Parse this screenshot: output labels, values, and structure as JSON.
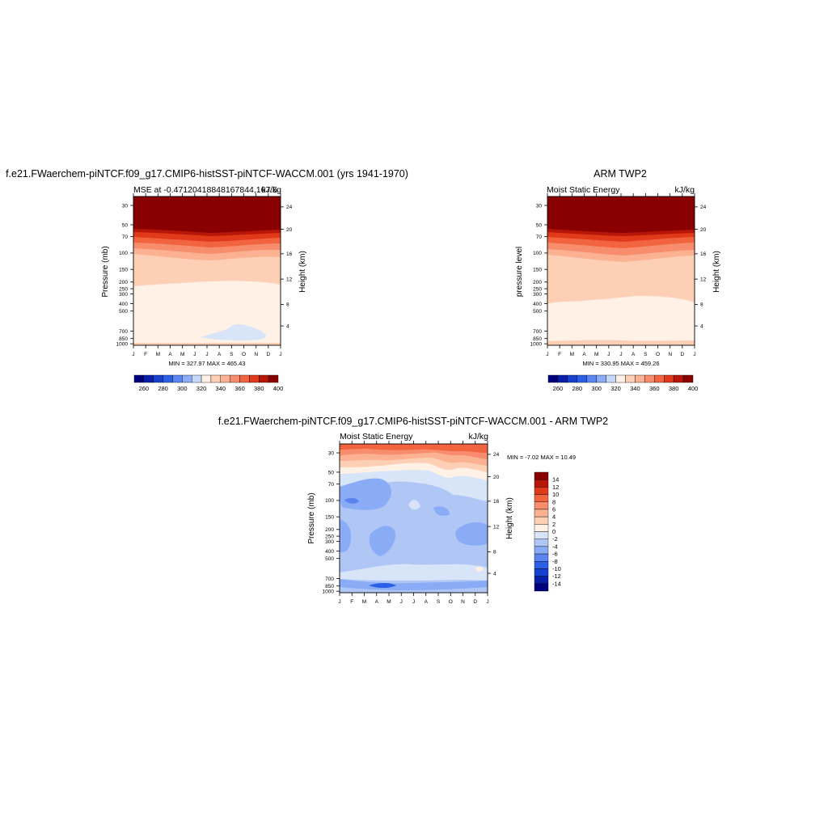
{
  "chart_data": [
    {
      "type": "contour",
      "title": "f.e21.FWaerchem-piNTCF.f09_g17.CMIP6-histSST-piNTCF-WACCM.001 (yrs 1941-1970)",
      "left_label": "MSE at -0.47120418848167844,167.5",
      "right_label": "kJ/kg",
      "ylabel": "Pressure (mb)",
      "ylabel_right": "Height (km)",
      "x_ticks": [
        "J",
        "F",
        "M",
        "A",
        "M",
        "J",
        "J",
        "A",
        "S",
        "O",
        "N",
        "D",
        "J"
      ],
      "y_ticks": [
        "30",
        "50",
        "70",
        "100",
        "150",
        "200",
        "250",
        "300",
        "400",
        "500",
        "700",
        "850",
        "1000"
      ],
      "height_ticks": [
        "24",
        "20",
        "16",
        "12",
        "8",
        "4"
      ],
      "min_max": "MIN = 327.97 MAX = 465.43",
      "colorbar_labels": [
        "260",
        "280",
        "300",
        "320",
        "340",
        "360",
        "380",
        "400"
      ],
      "colorbar_orientation": "horizontal"
    },
    {
      "type": "contour",
      "title": "ARM TWP2",
      "left_label": "Moist Static Energy",
      "right_label": "kJ/kg",
      "ylabel": "pressure level",
      "ylabel_right": "Height (km)",
      "x_ticks": [
        "J",
        "F",
        "M",
        "A",
        "M",
        "J",
        "J",
        "A",
        "S",
        "O",
        "N",
        "D",
        "J"
      ],
      "y_ticks": [
        "30",
        "50",
        "70",
        "100",
        "150",
        "200",
        "250",
        "300",
        "400",
        "500",
        "700",
        "850",
        "1000"
      ],
      "height_ticks": [
        "24",
        "20",
        "16",
        "12",
        "8",
        "4"
      ],
      "min_max": "MIN = 330.95 MAX = 459.26",
      "colorbar_labels": [
        "260",
        "280",
        "300",
        "320",
        "340",
        "360",
        "380",
        "400"
      ],
      "colorbar_orientation": "horizontal"
    },
    {
      "type": "contour",
      "title": "f.e21.FWaerchem-piNTCF.f09_g17.CMIP6-histSST-piNTCF-WACCM.001 - ARM TWP2",
      "left_label": "Moist Static Energy",
      "right_label": "kJ/kg",
      "ylabel": "Pressure (mb)",
      "ylabel_right": "Height (km)",
      "x_ticks": [
        "J",
        "F",
        "M",
        "A",
        "M",
        "J",
        "J",
        "A",
        "S",
        "O",
        "N",
        "D",
        "J"
      ],
      "y_ticks": [
        "30",
        "50",
        "70",
        "100",
        "150",
        "200",
        "250",
        "300",
        "400",
        "500",
        "700",
        "850",
        "1000"
      ],
      "height_ticks": [
        "24",
        "20",
        "16",
        "12",
        "8",
        "4"
      ],
      "min_max": "MIN =  -7.02 MAX =  10.49",
      "colorbar_labels": [
        "14",
        "12",
        "10",
        "8",
        "6",
        "4",
        "2",
        "0",
        "-2",
        "-4",
        "-6",
        "-8",
        "-10",
        "-12",
        "-14"
      ],
      "colorbar_orientation": "vertical"
    }
  ],
  "colors": {
    "seq_scale": [
      "#00007f",
      "#0a1fa8",
      "#1540d0",
      "#2a5fe6",
      "#5a85f0",
      "#8aabf5",
      "#c6d9f8",
      "#fff1e6",
      "#fdd0b6",
      "#fbb192",
      "#f78d6c",
      "#f2643f",
      "#e03a1a",
      "#b81608",
      "#8a0000"
    ],
    "diff_scale": [
      "#00007f",
      "#0a1fa8",
      "#1540d0",
      "#2a5fe6",
      "#5a85f0",
      "#8aabf5",
      "#b0c7f6",
      "#d8e5f8",
      "#fff1e6",
      "#fdd0b6",
      "#fbb192",
      "#f78d6c",
      "#f2643f",
      "#e03a1a",
      "#b81608",
      "#8a0000"
    ]
  }
}
